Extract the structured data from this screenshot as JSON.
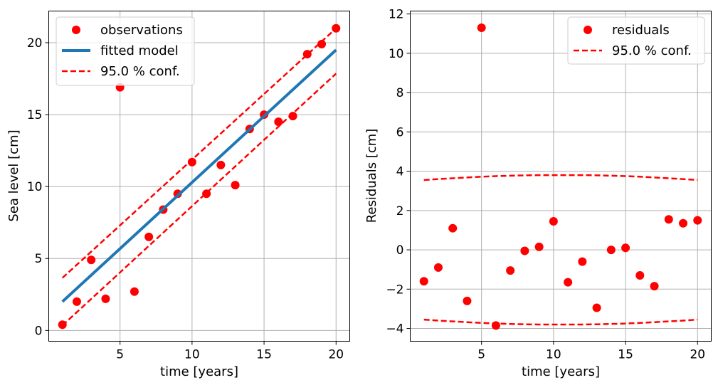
{
  "chart_data": [
    {
      "type": "scatter",
      "xlabel": "time [years]",
      "ylabel": "Sea level [cm]",
      "xlim": [
        0.05,
        20.95
      ],
      "ylim": [
        -0.75,
        22.2
      ],
      "xticks": [
        5,
        10,
        15,
        20
      ],
      "yticks": [
        0,
        5,
        10,
        15,
        20
      ],
      "grid": true,
      "legend_position": "top-left",
      "series": [
        {
          "name": "observations",
          "kind": "points",
          "color": "#ff0000",
          "x": [
            1,
            2,
            3,
            4,
            5,
            6,
            7,
            8,
            9,
            10,
            11,
            12,
            13,
            14,
            15,
            16,
            17,
            18,
            19,
            20
          ],
          "y": [
            0.4,
            2.0,
            4.9,
            2.2,
            16.9,
            2.7,
            6.5,
            8.4,
            9.5,
            11.7,
            9.5,
            11.5,
            10.1,
            14.0,
            15.0,
            14.5,
            14.9,
            19.2,
            19.9,
            21.0
          ]
        },
        {
          "name": "fitted model",
          "kind": "line",
          "color": "#1f77b4",
          "x": [
            1,
            20
          ],
          "y": [
            2.0,
            19.5
          ]
        },
        {
          "name": "95.0 % conf.",
          "kind": "dashed",
          "color": "#ff0000",
          "x": [
            1,
            20
          ],
          "y": [
            3.65,
            21.0
          ]
        },
        {
          "name": "95.0 % conf. (lower)",
          "kind": "dashed",
          "color": "#ff0000",
          "x": [
            1,
            20
          ],
          "y": [
            0.35,
            17.85
          ]
        }
      ]
    },
    {
      "type": "scatter",
      "xlabel": "time [years]",
      "ylabel": "Residuals [cm]",
      "xlim": [
        0.05,
        20.95
      ],
      "ylim": [
        -4.65,
        12.15
      ],
      "xticks": [
        5,
        10,
        15,
        20
      ],
      "yticks": [
        -4,
        -2,
        0,
        2,
        4,
        6,
        8,
        10,
        12
      ],
      "ytick_labels": [
        "−4",
        "−2",
        "0",
        "2",
        "4",
        "6",
        "8",
        "10",
        "12"
      ],
      "grid": true,
      "legend_position": "top-right",
      "series": [
        {
          "name": "residuals",
          "kind": "points",
          "color": "#ff0000",
          "x": [
            1,
            2,
            3,
            4,
            5,
            6,
            7,
            8,
            9,
            10,
            11,
            12,
            13,
            14,
            15,
            16,
            17,
            18,
            19,
            20
          ],
          "y": [
            -1.6,
            -0.9,
            1.1,
            -2.6,
            11.3,
            -3.85,
            -1.05,
            -0.05,
            0.15,
            1.45,
            -1.65,
            -0.6,
            -2.95,
            0.0,
            0.1,
            -1.3,
            -1.85,
            1.55,
            1.35,
            1.5
          ]
        },
        {
          "name": "95.0 % conf.",
          "kind": "dashed",
          "color": "#ff0000",
          "x": [
            1,
            2,
            3,
            4,
            5,
            6,
            7,
            8,
            9,
            10,
            11,
            12,
            13,
            14,
            15,
            16,
            17,
            18,
            19,
            20
          ],
          "y": [
            3.55,
            3.6,
            3.64,
            3.68,
            3.72,
            3.75,
            3.77,
            3.79,
            3.8,
            3.8,
            3.8,
            3.8,
            3.79,
            3.77,
            3.75,
            3.72,
            3.68,
            3.64,
            3.6,
            3.55
          ]
        },
        {
          "name": "95.0 % conf. (lower)",
          "kind": "dashed",
          "color": "#ff0000",
          "x": [
            1,
            2,
            3,
            4,
            5,
            6,
            7,
            8,
            9,
            10,
            11,
            12,
            13,
            14,
            15,
            16,
            17,
            18,
            19,
            20
          ],
          "y": [
            -3.55,
            -3.6,
            -3.64,
            -3.68,
            -3.72,
            -3.75,
            -3.77,
            -3.79,
            -3.8,
            -3.8,
            -3.8,
            -3.8,
            -3.79,
            -3.77,
            -3.75,
            -3.72,
            -3.68,
            -3.64,
            -3.6,
            -3.55
          ]
        }
      ]
    }
  ]
}
